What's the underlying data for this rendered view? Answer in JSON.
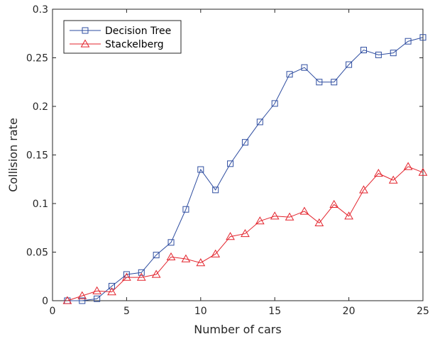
{
  "chart_data": {
    "type": "line",
    "xlabel": "Number of cars",
    "ylabel": "Collision rate",
    "xlim": [
      0,
      25
    ],
    "ylim": [
      0,
      0.3
    ],
    "x_ticks": [
      "0",
      "5",
      "10",
      "15",
      "20",
      "25"
    ],
    "y_ticks": [
      "0",
      "0.05",
      "0.1",
      "0.15",
      "0.2",
      "0.25",
      "0.3"
    ],
    "grid": false,
    "legend_position": "top-left",
    "x": [
      1,
      2,
      3,
      4,
      5,
      6,
      7,
      8,
      9,
      10,
      11,
      12,
      13,
      14,
      15,
      16,
      17,
      18,
      19,
      20,
      21,
      22,
      23,
      24,
      25
    ],
    "series": [
      {
        "name": "Decision Tree",
        "color": "#2e4da0",
        "marker": "square",
        "values": [
          0.0,
          0.0,
          0.002,
          0.015,
          0.027,
          0.029,
          0.047,
          0.06,
          0.094,
          0.135,
          0.114,
          0.141,
          0.163,
          0.184,
          0.203,
          0.233,
          0.24,
          0.225,
          0.225,
          0.243,
          0.258,
          0.253,
          0.255,
          0.267,
          0.271
        ]
      },
      {
        "name": "Stackelberg",
        "color": "#e3232c",
        "marker": "triangle",
        "values": [
          0.0,
          0.005,
          0.01,
          0.009,
          0.024,
          0.024,
          0.027,
          0.045,
          0.043,
          0.039,
          0.048,
          0.066,
          0.069,
          0.082,
          0.087,
          0.086,
          0.092,
          0.08,
          0.099,
          0.087,
          0.114,
          0.131,
          0.124,
          0.138,
          0.132
        ]
      }
    ]
  }
}
